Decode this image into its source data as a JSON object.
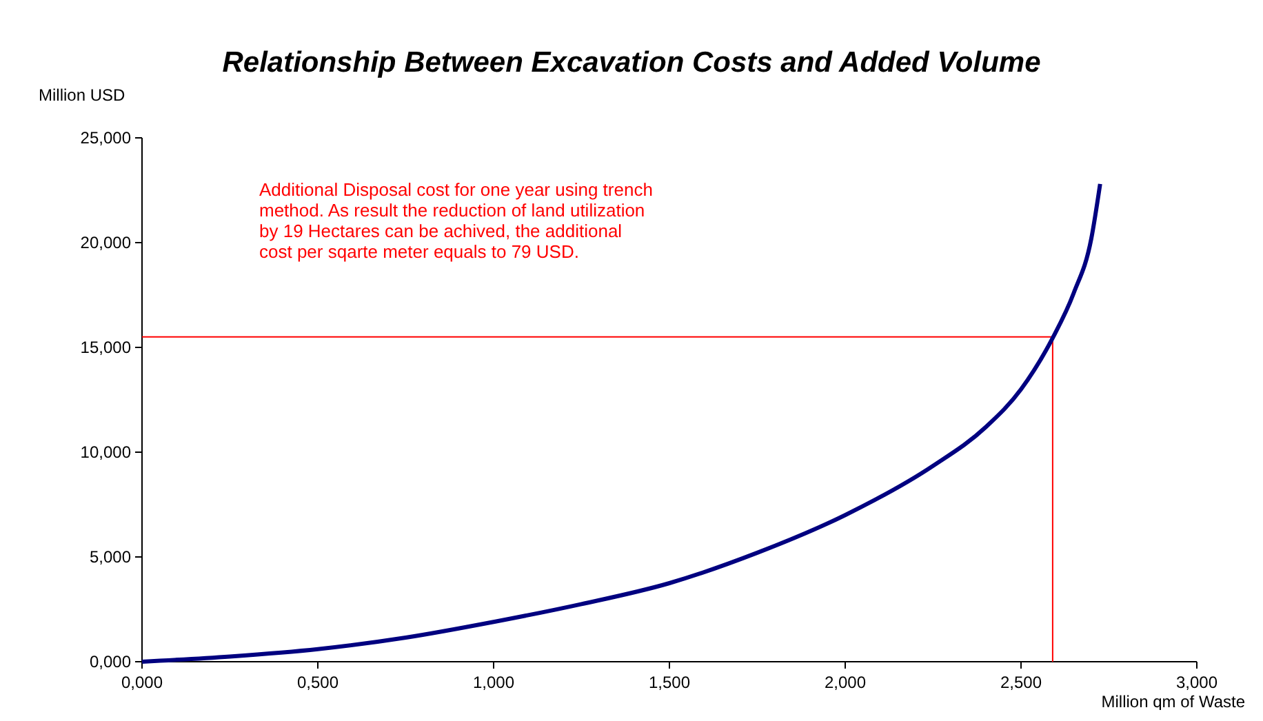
{
  "chart_data": {
    "type": "line",
    "title": "Relationship Between Excavation Costs and Added Volume",
    "xlabel": "Million qm of Waste",
    "ylabel": "Million USD",
    "annotations": [
      "Additional Disposal cost for one year using trench\nmethod. As result  the reduction of land utilization\nby 19 Hectares can be achived, the additional\ncost per sqarte meter equals to 79 USD."
    ],
    "x": [
      0,
      0.25,
      0.5,
      0.75,
      1,
      1.25,
      1.5,
      1.75,
      2,
      2.25,
      2.4,
      2.5,
      2.59,
      2.65,
      2.7,
      2.725
    ],
    "series": [
      {
        "color": "#000080",
        "values": [
          0,
          0.25,
          0.6,
          1.15,
          1.9,
          2.75,
          3.75,
          5.2,
          7,
          9.35,
          11.2,
          13,
          15.45,
          17.6,
          20.2,
          22.8
        ]
      }
    ],
    "xlim": [
      0,
      3
    ],
    "ylim": [
      0,
      25
    ],
    "xticks": [
      {
        "value": 0,
        "label": "0,000"
      },
      {
        "value": 0.5,
        "label": "0,500"
      },
      {
        "value": 1,
        "label": "1,000"
      },
      {
        "value": 1.5,
        "label": "1,500"
      },
      {
        "value": 2,
        "label": "2,000"
      },
      {
        "value": 2.5,
        "label": "2,500"
      },
      {
        "value": 3,
        "label": "3,000"
      }
    ],
    "yticks": [
      {
        "value": 0,
        "label": "0,000"
      },
      {
        "value": 5,
        "label": "5,000"
      },
      {
        "value": 10,
        "label": "10,000"
      },
      {
        "value": 15,
        "label": "15,000"
      },
      {
        "value": 20,
        "label": "20,000"
      },
      {
        "value": 25,
        "label": "25,000"
      }
    ],
    "ref_lines": [
      {
        "axis": "y",
        "value": 15.5,
        "color": "#ff0000"
      },
      {
        "axis": "x",
        "value": 2.59,
        "color": "#ff0000"
      }
    ],
    "grid": false,
    "marker": "none",
    "line_style": "solid"
  }
}
